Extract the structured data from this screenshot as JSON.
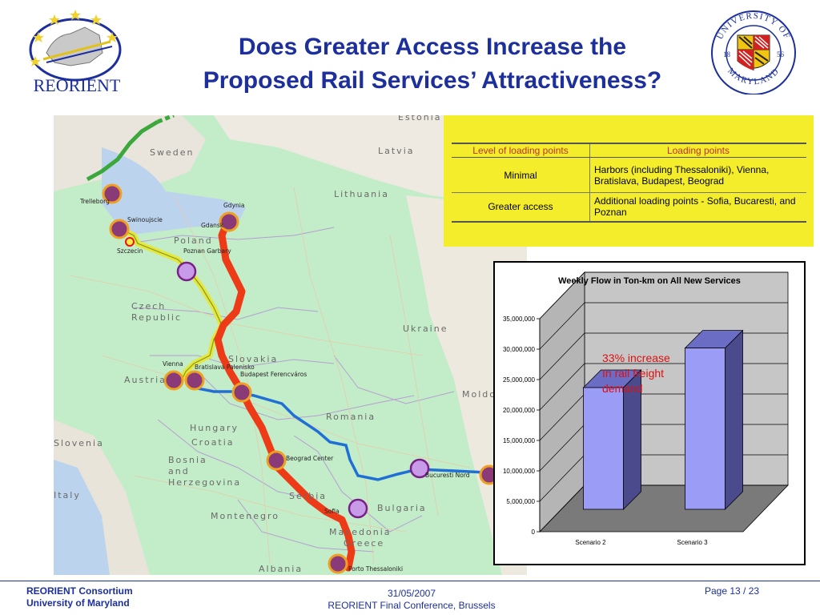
{
  "slide": {
    "title_line1": "Does Greater Access Increase the",
    "title_line2": "Proposed Rail Services’ Attractiveness?"
  },
  "logos": {
    "reorient_text": "REORIENT",
    "umd_text_top": "UNIVERSITY OF",
    "umd_text_bottom": "MARYLAND",
    "umd_year_left": "18",
    "umd_year_right": "56"
  },
  "map": {
    "country_labels": [
      "Estonia",
      "Sweden",
      "Latvia",
      "Lithuania",
      "Poland",
      "Czech",
      "Republic",
      "Ukraine",
      "Slovakia",
      "Austria",
      "Hungary",
      "Moldova",
      "Romania",
      "Slovenia",
      "Croatia",
      "Bosnia",
      "and",
      "Herzegovina",
      "Serbia",
      "Bulgaria",
      "Italy",
      "Montenegro",
      "Macedonia",
      "Greece",
      "Albania"
    ],
    "city_labels": [
      "Trelleborg",
      "Gdynia",
      "Gdansk",
      "Swinoujscie",
      "Szczecin",
      "Poznan Garbary",
      "Vienna",
      "Bratislava Palenisko",
      "Budapest Ferencváros",
      "Beograd Center",
      "Bucuresti Nord",
      "Sofia",
      "Porto Thessaloniki"
    ]
  },
  "loading_table": {
    "headers": [
      "Level of loading points",
      "Loading points"
    ],
    "rows": [
      {
        "level": "Minimal",
        "points": "Harbors (including Thessaloniki), Vienna, Bratislava, Budapest, Beograd"
      },
      {
        "level": "Greater access",
        "points": "Additional loading points - Sofia, Bucaresti, and Poznan"
      }
    ]
  },
  "chart_data": {
    "type": "bar",
    "title": "Weekly Flow in Ton-km on All New Services",
    "categories": [
      "Scenario 2",
      "Scenario 3"
    ],
    "values": [
      20000000,
      26500000
    ],
    "ylim": [
      0,
      35000000
    ],
    "yticks": [
      0,
      5000000,
      10000000,
      15000000,
      20000000,
      25000000,
      30000000,
      35000000
    ],
    "ytick_labels": [
      "0",
      "5,000,000",
      "10,000,000",
      "15,000,000",
      "20,000,000",
      "25,000,000",
      "30,000,000",
      "35,000,000"
    ],
    "annotation_lines": [
      "33% increase",
      "In rail freight",
      "demand"
    ],
    "grid": true,
    "bar_color": "#9a9cf6",
    "annotation_color": "#dd1111"
  },
  "footer": {
    "left_line1": "REORIENT Consortium",
    "left_line2": "University of Maryland",
    "date": "31/05/2007",
    "event": "REORIENT Final Conference, Brussels",
    "page_label": "Page 13 /  23"
  },
  "colors": {
    "title": "#1c2f9c",
    "table_box": "#f4ed2b",
    "header_text": "#c0302b",
    "route_red": "#ee3b17",
    "route_blue": "#1f6fd6",
    "route_green": "#3aa83a",
    "route_yellow": "#e9e63a",
    "node_purple": "#8b3a78",
    "node_lilac": "#c79be8"
  }
}
